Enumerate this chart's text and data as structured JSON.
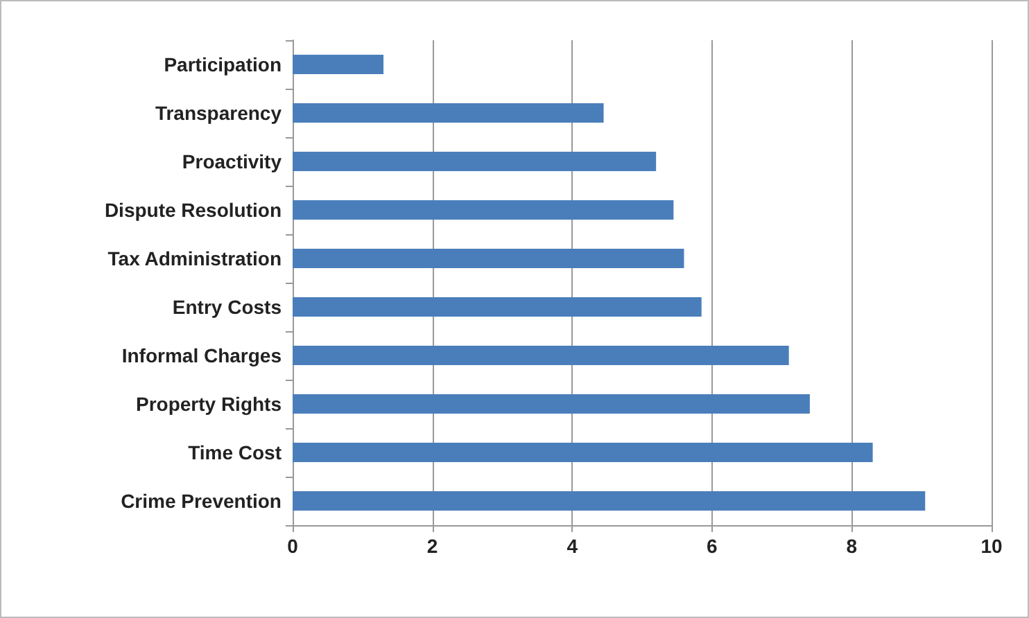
{
  "chart_data": {
    "type": "bar",
    "orientation": "horizontal",
    "categories": [
      "Participation",
      "Transparency",
      "Proactivity",
      "Dispute Resolution",
      "Tax Administration",
      "Entry Costs",
      "Informal Charges",
      "Property Rights",
      "Time Cost",
      "Crime Prevention"
    ],
    "values": [
      1.3,
      4.45,
      5.2,
      5.45,
      5.6,
      5.85,
      7.1,
      7.4,
      8.3,
      9.05
    ],
    "color": "#4a7ebb",
    "xlim": [
      0,
      10
    ],
    "xticks": [
      0,
      2,
      4,
      6,
      8,
      10
    ],
    "grid": "x"
  }
}
